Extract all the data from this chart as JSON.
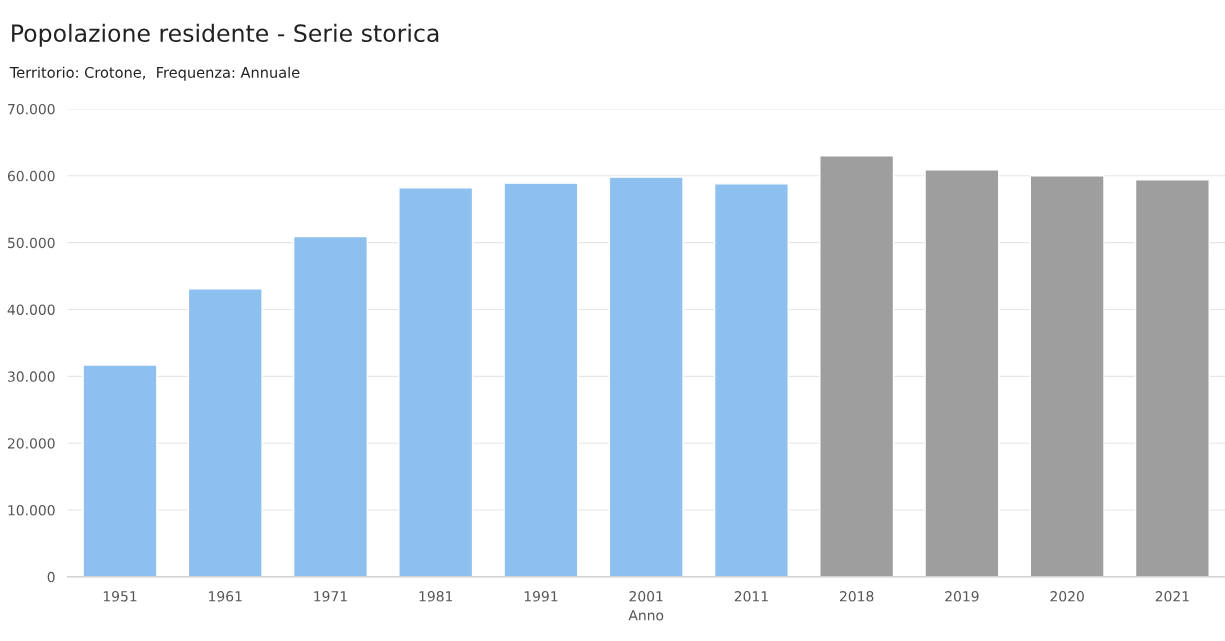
{
  "chart_data": {
    "type": "bar",
    "title": "Popolazione residente - Serie storica",
    "subtitle": "Territorio: Crotone,  Frequenza: Annuale",
    "xlabel": "Anno",
    "categories": [
      "1951",
      "1961",
      "1971",
      "1981",
      "1991",
      "2001",
      "2011",
      "2018",
      "2019",
      "2020",
      "2021"
    ],
    "values": [
      31700,
      43100,
      50900,
      58200,
      58900,
      59800,
      58800,
      63000,
      60900,
      60000,
      59400
    ],
    "colors": [
      "#8dc0ef",
      "#8dc0ef",
      "#8dc0ef",
      "#8dc0ef",
      "#8dc0ef",
      "#8dc0ef",
      "#8dc0ef",
      "#9e9e9e",
      "#9e9e9e",
      "#9e9e9e",
      "#9e9e9e"
    ],
    "ylim": [
      0,
      70000
    ],
    "yticks": [
      {
        "value": 0,
        "label": "0"
      },
      {
        "value": 10000,
        "label": "10.000"
      },
      {
        "value": 20000,
        "label": "20.000"
      },
      {
        "value": 30000,
        "label": "30.000"
      },
      {
        "value": 40000,
        "label": "40.000"
      },
      {
        "value": 50000,
        "label": "50.000"
      },
      {
        "value": 60000,
        "label": "60.000"
      },
      {
        "value": 70000,
        "label": "70.000"
      }
    ],
    "grid": "y"
  }
}
